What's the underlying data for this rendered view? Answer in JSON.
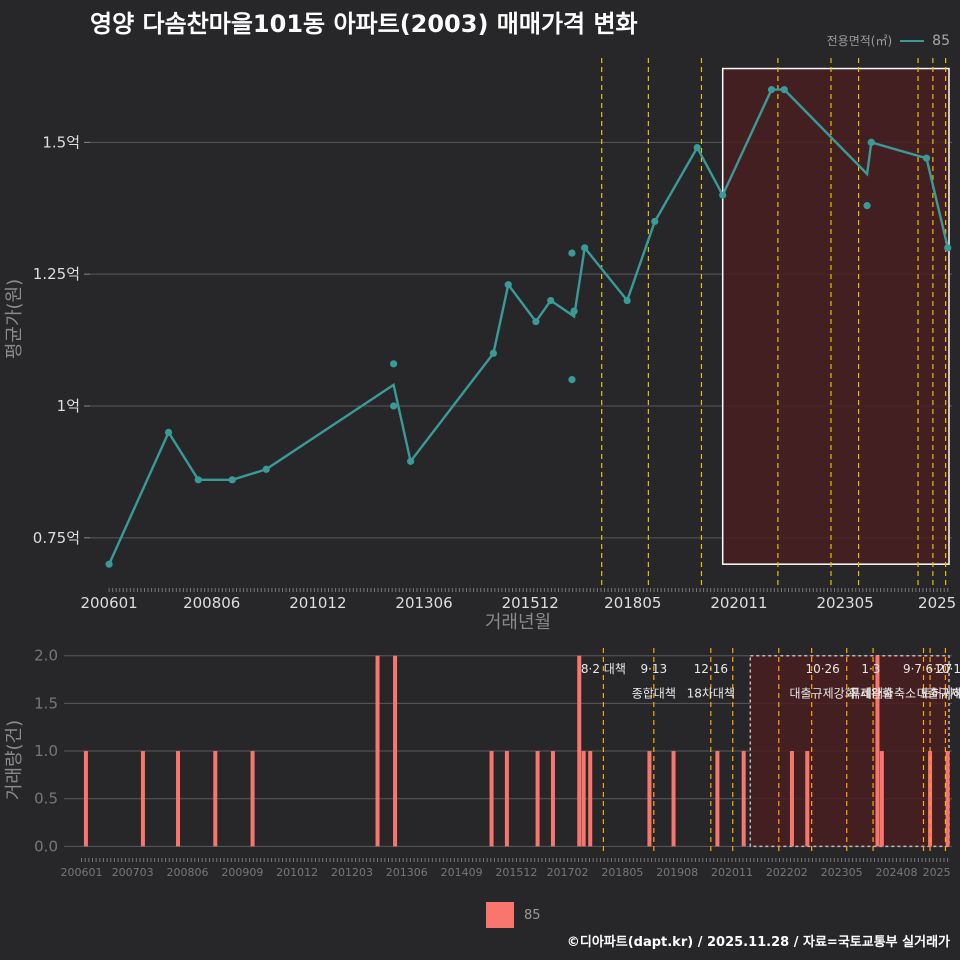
{
  "title": "영양 다솜찬마을101동 아파트(2003) 매매가격 변화",
  "legend": {
    "title": "전용면적(㎡)",
    "series_label": "85"
  },
  "bottom_legend": {
    "label": "85"
  },
  "footer": "©디아파트(dapt.kr) / 2025.11.28 / 자료=국토교통부 실거래가",
  "colors": {
    "line": "#3a9a97",
    "bar": "#f8766d",
    "highlight_fill": "#4a1e20",
    "policy_line": "#e5c100",
    "bar_policy_line": "#ffa500"
  },
  "chart_data": [
    {
      "type": "line",
      "title": "영양 다솜찬마을101동 아파트(2003) 매매가격 변화",
      "xlabel": "거래년월",
      "ylabel": "평균가(원)",
      "x_ticks": [
        "200601",
        "200806",
        "201012",
        "201306",
        "201512",
        "201805",
        "202011",
        "202305",
        "2025"
      ],
      "y_ticks": [
        {
          "value": 0.75,
          "label": "0.75억"
        },
        {
          "value": 1.0,
          "label": "1억"
        },
        {
          "value": 1.25,
          "label": "1.25억"
        },
        {
          "value": 1.5,
          "label": "1.5억"
        }
      ],
      "ylim": [
        0.67,
        1.66
      ],
      "xlim": [
        "2005.55",
        "2025.85"
      ],
      "series": [
        {
          "name": "85",
          "line": [
            {
              "x": 2006.0,
              "y": 0.7
            },
            {
              "x": 2007.4,
              "y": 0.95
            },
            {
              "x": 2008.1,
              "y": 0.86
            },
            {
              "x": 2008.9,
              "y": 0.86
            },
            {
              "x": 2009.7,
              "y": 0.88
            },
            {
              "x": 2012.7,
              "y": 1.04
            },
            {
              "x": 2013.1,
              "y": 0.895
            },
            {
              "x": 2015.05,
              "y": 1.1
            },
            {
              "x": 2015.4,
              "y": 1.23
            },
            {
              "x": 2016.05,
              "y": 1.16
            },
            {
              "x": 2016.4,
              "y": 1.2
            },
            {
              "x": 2016.95,
              "y": 1.17
            },
            {
              "x": 2017.2,
              "y": 1.3
            },
            {
              "x": 2018.2,
              "y": 1.2
            },
            {
              "x": 2018.85,
              "y": 1.35
            },
            {
              "x": 2019.85,
              "y": 1.49
            },
            {
              "x": 2020.45,
              "y": 1.4
            },
            {
              "x": 2021.6,
              "y": 1.6
            },
            {
              "x": 2021.9,
              "y": 1.6
            },
            {
              "x": 2023.85,
              "y": 1.44
            },
            {
              "x": 2023.95,
              "y": 1.5
            },
            {
              "x": 2025.25,
              "y": 1.47
            },
            {
              "x": 2025.75,
              "y": 1.3
            }
          ],
          "points": [
            {
              "x": 2006.0,
              "y": 0.7
            },
            {
              "x": 2007.4,
              "y": 0.95
            },
            {
              "x": 2008.1,
              "y": 0.86
            },
            {
              "x": 2008.9,
              "y": 0.86
            },
            {
              "x": 2009.7,
              "y": 0.88
            },
            {
              "x": 2012.7,
              "y": 1.08
            },
            {
              "x": 2012.7,
              "y": 1.0
            },
            {
              "x": 2013.1,
              "y": 0.895
            },
            {
              "x": 2015.05,
              "y": 1.1
            },
            {
              "x": 2015.4,
              "y": 1.23
            },
            {
              "x": 2016.05,
              "y": 1.16
            },
            {
              "x": 2016.4,
              "y": 1.2
            },
            {
              "x": 2016.9,
              "y": 1.29
            },
            {
              "x": 2016.9,
              "y": 1.05
            },
            {
              "x": 2016.95,
              "y": 1.18
            },
            {
              "x": 2017.2,
              "y": 1.3
            },
            {
              "x": 2018.2,
              "y": 1.2
            },
            {
              "x": 2018.85,
              "y": 1.35
            },
            {
              "x": 2019.85,
              "y": 1.49
            },
            {
              "x": 2020.45,
              "y": 1.4
            },
            {
              "x": 2021.6,
              "y": 1.6
            },
            {
              "x": 2021.9,
              "y": 1.6
            },
            {
              "x": 2023.85,
              "y": 1.38
            },
            {
              "x": 2023.95,
              "y": 1.5
            },
            {
              "x": 2023.95,
              "y": 1.5
            },
            {
              "x": 2025.25,
              "y": 1.47
            },
            {
              "x": 2025.75,
              "y": 1.3
            }
          ]
        }
      ],
      "policy_lines": [
        2017.6,
        2018.7,
        2019.95,
        2021.75,
        2023.0,
        2023.65,
        2025.05,
        2025.4,
        2025.7
      ],
      "highlight_range": {
        "x": [
          2020.45,
          2025.85
        ],
        "y": [
          0.7,
          1.64
        ]
      }
    },
    {
      "type": "bar",
      "ylabel": "거래량(건)",
      "x_ticks": [
        "200601",
        "200703",
        "200806",
        "200909",
        "201012",
        "201203",
        "201306",
        "201409",
        "201512",
        "201702",
        "201805",
        "201908",
        "202011",
        "202202",
        "202305",
        "202408",
        "2025"
      ],
      "y_ticks": [
        {
          "value": 0.0,
          "label": "0.0"
        },
        {
          "value": 0.5,
          "label": "0.5"
        },
        {
          "value": 1.0,
          "label": "1.0"
        },
        {
          "value": 1.5,
          "label": "1.5"
        },
        {
          "value": 2.0,
          "label": "2.0"
        }
      ],
      "ylim": [
        -0.08,
        2.06
      ],
      "bars": [
        {
          "x": 2006.1,
          "y": 1
        },
        {
          "x": 2007.4,
          "y": 1
        },
        {
          "x": 2008.2,
          "y": 1
        },
        {
          "x": 2009.05,
          "y": 1
        },
        {
          "x": 2009.9,
          "y": 1
        },
        {
          "x": 2012.75,
          "y": 2
        },
        {
          "x": 2013.15,
          "y": 2
        },
        {
          "x": 2015.35,
          "y": 1
        },
        {
          "x": 2015.7,
          "y": 1
        },
        {
          "x": 2016.4,
          "y": 1
        },
        {
          "x": 2016.75,
          "y": 1
        },
        {
          "x": 2017.35,
          "y": 2
        },
        {
          "x": 2017.45,
          "y": 1
        },
        {
          "x": 2017.6,
          "y": 1
        },
        {
          "x": 2018.95,
          "y": 1
        },
        {
          "x": 2019.5,
          "y": 1
        },
        {
          "x": 2020.5,
          "y": 1
        },
        {
          "x": 2021.1,
          "y": 1
        },
        {
          "x": 2022.2,
          "y": 1
        },
        {
          "x": 2022.55,
          "y": 1
        },
        {
          "x": 2024.15,
          "y": 2
        },
        {
          "x": 2024.25,
          "y": 1
        },
        {
          "x": 2025.35,
          "y": 1
        },
        {
          "x": 2025.75,
          "y": 1
        }
      ],
      "policy_lines": [
        2017.9,
        2019.05,
        2020.35,
        2020.85,
        2021.9,
        2022.65,
        2023.45,
        2024.05,
        2025.2,
        2025.35,
        2025.7
      ],
      "policy_labels": [
        {
          "x": 2017.9,
          "line1": "8·2 대책",
          "line2": ""
        },
        {
          "x": 2019.05,
          "line1": "9·13",
          "line2": "종합대책"
        },
        {
          "x": 2020.35,
          "line1": "12·16",
          "line2": "18차대책"
        },
        {
          "x": 2022.9,
          "line1": "10·26",
          "line2": "대출규제강화"
        },
        {
          "x": 2024.0,
          "line1": "1·3",
          "line2": "규제완화"
        },
        {
          "x": 2024.95,
          "line1": "9·7",
          "line2": "특례대출축소 토허제해제"
        },
        {
          "x": 2025.55,
          "line1": "6·27",
          "line2": "대출규제"
        },
        {
          "x": 2025.75,
          "line1": "10·1",
          "line2": ""
        }
      ],
      "highlight_range": {
        "x": [
          2021.25,
          2025.85
        ],
        "y": [
          0,
          2
        ]
      }
    }
  ]
}
